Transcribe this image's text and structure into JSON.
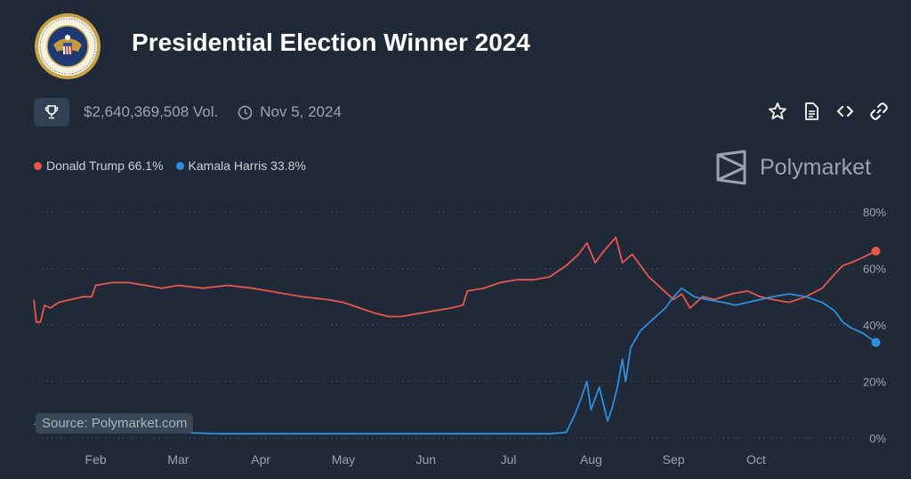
{
  "header": {
    "title": "Presidential Election Winner 2024",
    "volume": "$2,640,369,508 Vol.",
    "date": "Nov 5, 2024",
    "seal_text": "SEAL OF THE PRESIDENT OF THE UNITED STATES"
  },
  "brand": {
    "name": "Polymarket"
  },
  "source_label": "Source: Polymarket.com",
  "icons": {
    "trophy": "trophy-icon",
    "clock": "clock-icon",
    "star": "star-icon",
    "document": "document-icon",
    "embed": "code-icon",
    "link": "link-icon"
  },
  "colors": {
    "trump": "#e8564e",
    "harris": "#2f8fdc",
    "background": "#1f2937"
  },
  "chart_data": {
    "type": "line",
    "title": "Presidential Election Winner 2024",
    "y_tick_labels": [
      "80%",
      "60%",
      "40%",
      "20%",
      "0%"
    ],
    "x_tick_labels": [
      "Feb",
      "Mar",
      "Apr",
      "May",
      "Jun",
      "Jul",
      "Aug",
      "Sep",
      "Oct"
    ],
    "ylim": [
      0,
      80
    ],
    "x_unit": "months since Jan 1, 2024",
    "xlim": [
      0.25,
      10.1
    ],
    "grid": "horizontal dotted",
    "legend_placement": "top-left",
    "series": [
      {
        "name": "Donald Trump",
        "legend_label": "Donald Trump 66.1%",
        "color": "#e8564e",
        "points": [
          [
            0.25,
            49
          ],
          [
            0.28,
            41
          ],
          [
            0.33,
            41
          ],
          [
            0.38,
            47
          ],
          [
            0.45,
            46
          ],
          [
            0.55,
            48
          ],
          [
            0.7,
            49
          ],
          [
            0.85,
            50
          ],
          [
            0.95,
            50
          ],
          [
            1.0,
            54
          ],
          [
            1.2,
            55
          ],
          [
            1.4,
            55
          ],
          [
            1.6,
            54
          ],
          [
            1.8,
            53
          ],
          [
            2.0,
            54
          ],
          [
            2.3,
            53
          ],
          [
            2.6,
            54
          ],
          [
            2.9,
            53
          ],
          [
            3.1,
            52
          ],
          [
            3.3,
            51
          ],
          [
            3.5,
            50
          ],
          [
            3.8,
            49
          ],
          [
            4.0,
            48
          ],
          [
            4.2,
            46
          ],
          [
            4.4,
            44
          ],
          [
            4.55,
            43
          ],
          [
            4.7,
            43
          ],
          [
            4.9,
            44
          ],
          [
            5.1,
            45
          ],
          [
            5.3,
            46
          ],
          [
            5.45,
            47
          ],
          [
            5.5,
            52
          ],
          [
            5.7,
            53
          ],
          [
            5.9,
            55
          ],
          [
            6.1,
            56
          ],
          [
            6.3,
            56
          ],
          [
            6.5,
            57
          ],
          [
            6.7,
            61
          ],
          [
            6.85,
            65
          ],
          [
            6.95,
            69
          ],
          [
            7.05,
            62
          ],
          [
            7.15,
            66
          ],
          [
            7.3,
            71
          ],
          [
            7.38,
            62
          ],
          [
            7.5,
            65
          ],
          [
            7.7,
            57
          ],
          [
            7.85,
            53
          ],
          [
            8.0,
            49
          ],
          [
            8.1,
            51
          ],
          [
            8.2,
            46
          ],
          [
            8.35,
            50
          ],
          [
            8.5,
            49
          ],
          [
            8.7,
            51
          ],
          [
            8.9,
            52
          ],
          [
            9.05,
            50
          ],
          [
            9.2,
            49
          ],
          [
            9.4,
            48
          ],
          [
            9.6,
            50
          ],
          [
            9.8,
            53
          ],
          [
            9.95,
            58
          ],
          [
            10.05,
            61
          ],
          [
            10.15,
            62
          ],
          [
            10.3,
            64
          ],
          [
            10.45,
            66.1
          ]
        ]
      },
      {
        "name": "Kamala Harris",
        "legend_label": "Kamala Harris 33.8%",
        "color": "#2f8fdc",
        "points": [
          [
            0.25,
            5
          ],
          [
            0.4,
            4
          ],
          [
            0.6,
            3
          ],
          [
            0.9,
            3
          ],
          [
            1.2,
            2
          ],
          [
            1.6,
            2
          ],
          [
            2.0,
            2
          ],
          [
            2.5,
            1.5
          ],
          [
            3.0,
            1.5
          ],
          [
            3.5,
            1.5
          ],
          [
            4.0,
            1.5
          ],
          [
            4.5,
            1.5
          ],
          [
            5.0,
            1.5
          ],
          [
            5.5,
            1.5
          ],
          [
            6.0,
            1.5
          ],
          [
            6.5,
            1.5
          ],
          [
            6.7,
            2
          ],
          [
            6.8,
            8
          ],
          [
            6.88,
            14
          ],
          [
            6.95,
            20
          ],
          [
            7.0,
            10
          ],
          [
            7.1,
            18
          ],
          [
            7.15,
            12
          ],
          [
            7.2,
            6
          ],
          [
            7.25,
            10
          ],
          [
            7.32,
            18
          ],
          [
            7.38,
            28
          ],
          [
            7.42,
            20
          ],
          [
            7.48,
            32
          ],
          [
            7.6,
            38
          ],
          [
            7.75,
            42
          ],
          [
            7.9,
            46
          ],
          [
            8.0,
            50
          ],
          [
            8.1,
            53
          ],
          [
            8.25,
            50
          ],
          [
            8.4,
            49
          ],
          [
            8.6,
            48
          ],
          [
            8.75,
            47
          ],
          [
            8.9,
            48
          ],
          [
            9.05,
            49
          ],
          [
            9.2,
            50
          ],
          [
            9.4,
            51
          ],
          [
            9.6,
            50
          ],
          [
            9.8,
            48
          ],
          [
            9.95,
            45
          ],
          [
            10.05,
            41
          ],
          [
            10.15,
            39
          ],
          [
            10.3,
            37
          ],
          [
            10.45,
            33.8
          ]
        ]
      }
    ]
  }
}
